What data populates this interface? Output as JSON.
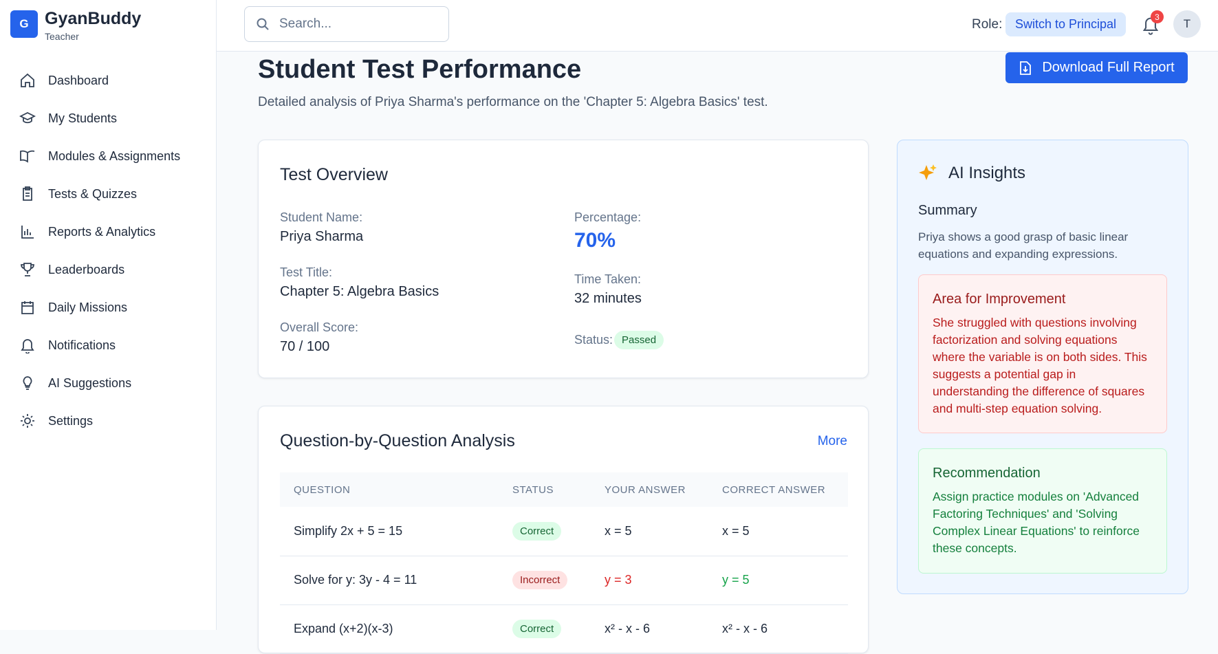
{
  "sidebar": {
    "logo_letter": "G",
    "brand": "GyanBuddy",
    "role": "Teacher",
    "nav": [
      "Dashboard",
      "My Students",
      "Modules & Assignments",
      "Tests & Quizzes",
      "Reports & Analytics",
      "Leaderboards",
      "Daily Missions",
      "Notifications",
      "AI Suggestions",
      "Settings"
    ]
  },
  "header": {
    "search_placeholder": "Search...",
    "role_label": "Role:",
    "switch_button": "Switch to Principal",
    "notification_count": 3,
    "avatar": "T"
  },
  "page": {
    "title": "Student Test Performance",
    "subtitle": "Detailed analysis of Priya Sharma's performance on the 'Chapter 5: Algebra Basics' test.",
    "download_button": "Download Full Report"
  },
  "overview": {
    "title": "Test Overview",
    "left": [
      {
        "label": "Student Name:",
        "value": "Priya Sharma"
      },
      {
        "label": "Test Title:",
        "value": "Chapter 5: Algebra Basics"
      },
      {
        "label": "Overall Score:",
        "value": "70 / 100"
      }
    ],
    "right": [
      {
        "label": "Percentage:",
        "value": "70%"
      },
      {
        "label": "Time Taken:",
        "value": "32 minutes"
      },
      {
        "label": "Status:",
        "value": "Passed"
      }
    ]
  },
  "analysis": {
    "title": "Question-by-Question Analysis",
    "more": "More",
    "columns": [
      "QUESTION",
      "STATUS",
      "YOUR ANSWER",
      "CORRECT ANSWER"
    ],
    "rows": [
      [
        "Simplify 2x + 5 = 15",
        "Correct",
        "x = 5",
        "x = 5"
      ],
      [
        "Solve for y: 3y - 4 = 11",
        "Incorrect",
        "y = 3",
        "y = 5"
      ],
      [
        "Expand (x+2)(x-3)",
        "Correct",
        "x² - x - 6",
        "x² - x - 6"
      ]
    ]
  },
  "insights": {
    "title": "AI Insights",
    "summary_title": "Summary",
    "summary": "Priya shows a good grasp of basic linear equations and expanding expressions.",
    "improvement_title": "Area for Improvement",
    "improvement": "She struggled with questions involving factorization and solving equations where the variable is on both sides. This suggests a potential gap in understanding the difference of squares and multi-step equation solving.",
    "recommendation_title": "Recommendation",
    "recommendation": "Assign practice modules on 'Advanced Factoring Techniques' and 'Solving Complex Linear Equations' to reinforce these concepts."
  }
}
